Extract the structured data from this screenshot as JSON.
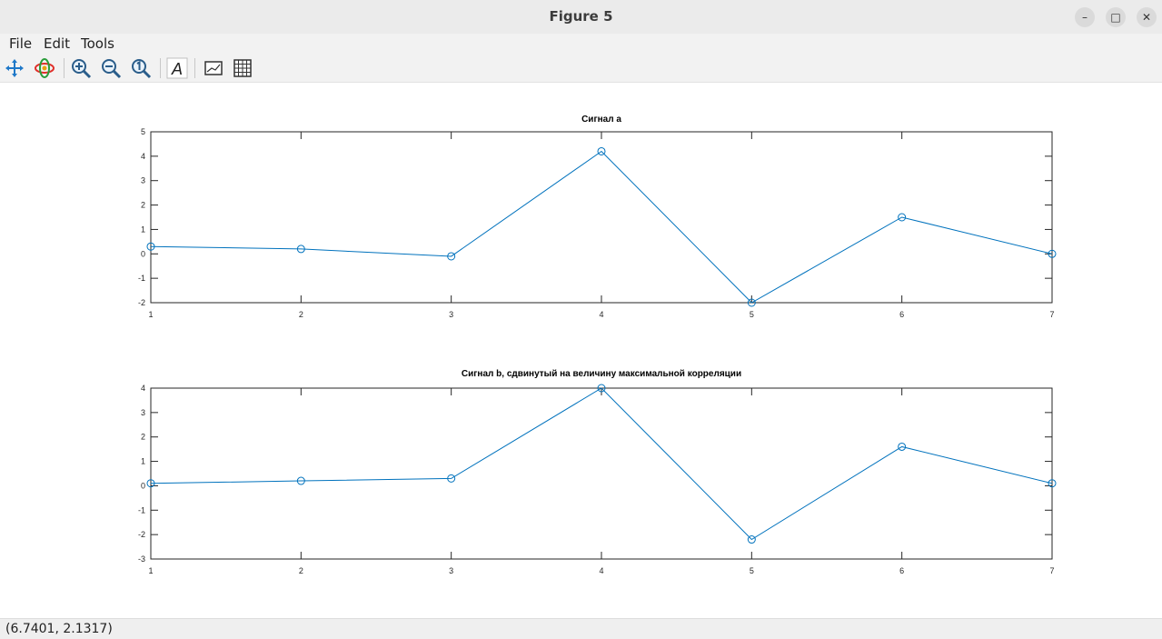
{
  "window": {
    "title": "Figure 5"
  },
  "menu": {
    "file": "File",
    "edit": "Edit",
    "tools": "Tools"
  },
  "toolbar": {
    "icons": [
      "pan-icon",
      "rotate-icon",
      "zoom-in-icon",
      "zoom-out-icon",
      "zoom-reset-icon",
      "text-annotation-icon",
      "axes-toggle-icon",
      "grid-toggle-icon"
    ]
  },
  "status": {
    "coordinates": "(6.7401, 2.1317)"
  },
  "colors": {
    "series": "#0072bd",
    "axes": "#262626"
  },
  "chart_data": [
    {
      "type": "line",
      "title": "Сигнал a",
      "xlabel": "",
      "ylabel": "",
      "x": [
        1,
        2,
        3,
        4,
        5,
        6,
        7
      ],
      "series": [
        {
          "values": [
            0.3,
            0.2,
            -0.1,
            4.2,
            -2.0,
            1.5,
            0.0
          ],
          "marker": "circle"
        }
      ],
      "xlim": [
        1,
        7
      ],
      "ylim": [
        -2,
        5
      ],
      "xticks": [
        "1",
        "2",
        "3",
        "4",
        "5",
        "6",
        "7"
      ],
      "yticks": [
        "5",
        "4",
        "3",
        "2",
        "1",
        "0",
        "-1",
        "-2"
      ],
      "grid": false
    },
    {
      "type": "line",
      "title": "Сигнал b, сдвинутый на величину максимальной корреляции",
      "xlabel": "",
      "ylabel": "",
      "x": [
        1,
        2,
        3,
        4,
        5,
        6,
        7
      ],
      "series": [
        {
          "values": [
            0.1,
            0.2,
            0.3,
            4.0,
            -2.2,
            1.6,
            0.1
          ],
          "marker": "circle"
        }
      ],
      "xlim": [
        1,
        7
      ],
      "ylim": [
        -3,
        4
      ],
      "xticks": [
        "1",
        "2",
        "3",
        "4",
        "5",
        "6",
        "7"
      ],
      "yticks": [
        "4",
        "3",
        "2",
        "1",
        "0",
        "-1",
        "-2",
        "-3"
      ],
      "grid": false
    }
  ]
}
